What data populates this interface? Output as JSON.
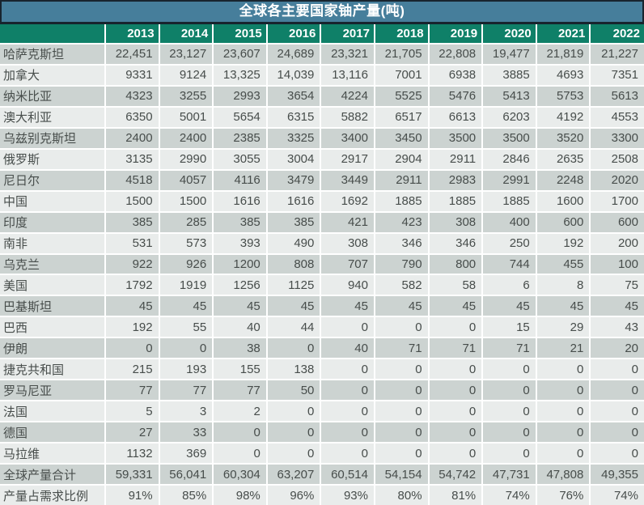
{
  "colors": {
    "title_bg": "#467e9b",
    "title_border": "#18242e",
    "header_bg": "#0f8068",
    "row_dark": "#ccd3d1",
    "row_light": "#e9eceb",
    "data_text": "#474d4b",
    "header_text": "#ffffff"
  },
  "chart_data": {
    "type": "table",
    "title": "全球各主要国家铀产量(吨)",
    "columns": [
      "2013",
      "2014",
      "2015",
      "2016",
      "2017",
      "2018",
      "2019",
      "2020",
      "2021",
      "2022"
    ],
    "rows": [
      {
        "label": "哈萨克斯坦",
        "values": [
          "22,451",
          "23,127",
          "23,607",
          "24,689",
          "23,321",
          "21,705",
          "22,808",
          "19,477",
          "21,819",
          "21,227"
        ]
      },
      {
        "label": "加拿大",
        "values": [
          "9331",
          "9124",
          "13,325",
          "14,039",
          "13,116",
          "7001",
          "6938",
          "3885",
          "4693",
          "7351"
        ]
      },
      {
        "label": "纳米比亚",
        "values": [
          "4323",
          "3255",
          "2993",
          "3654",
          "4224",
          "5525",
          "5476",
          "5413",
          "5753",
          "5613"
        ]
      },
      {
        "label": "澳大利亚",
        "values": [
          "6350",
          "5001",
          "5654",
          "6315",
          "5882",
          "6517",
          "6613",
          "6203",
          "4192",
          "4553"
        ]
      },
      {
        "label": "乌兹别克斯坦",
        "values": [
          "2400",
          "2400",
          "2385",
          "3325",
          "3400",
          "3450",
          "3500",
          "3500",
          "3520",
          "3300"
        ]
      },
      {
        "label": "俄罗斯",
        "values": [
          "3135",
          "2990",
          "3055",
          "3004",
          "2917",
          "2904",
          "2911",
          "2846",
          "2635",
          "2508"
        ]
      },
      {
        "label": "尼日尔",
        "values": [
          "4518",
          "4057",
          "4116",
          "3479",
          "3449",
          "2911",
          "2983",
          "2991",
          "2248",
          "2020"
        ]
      },
      {
        "label": "中国",
        "values": [
          "1500",
          "1500",
          "1616",
          "1616",
          "1692",
          "1885",
          "1885",
          "1885",
          "1600",
          "1700"
        ]
      },
      {
        "label": "印度",
        "values": [
          "385",
          "285",
          "385",
          "385",
          "421",
          "423",
          "308",
          "400",
          "600",
          "600"
        ]
      },
      {
        "label": "南非",
        "values": [
          "531",
          "573",
          "393",
          "490",
          "308",
          "346",
          "346",
          "250",
          "192",
          "200"
        ]
      },
      {
        "label": "乌克兰",
        "values": [
          "922",
          "926",
          "1200",
          "808",
          "707",
          "790",
          "800",
          "744",
          "455",
          "100"
        ]
      },
      {
        "label": "美国",
        "values": [
          "1792",
          "1919",
          "1256",
          "1125",
          "940",
          "582",
          "58",
          "6",
          "8",
          "75"
        ]
      },
      {
        "label": "巴基斯坦",
        "values": [
          "45",
          "45",
          "45",
          "45",
          "45",
          "45",
          "45",
          "45",
          "45",
          "45"
        ]
      },
      {
        "label": "巴西",
        "values": [
          "192",
          "55",
          "40",
          "44",
          "0",
          "0",
          "0",
          "15",
          "29",
          "43"
        ]
      },
      {
        "label": "伊朗",
        "values": [
          "0",
          "0",
          "38",
          "0",
          "40",
          "71",
          "71",
          "71",
          "21",
          "20"
        ]
      },
      {
        "label": "捷克共和国",
        "values": [
          "215",
          "193",
          "155",
          "138",
          "0",
          "0",
          "0",
          "0",
          "0",
          "0"
        ]
      },
      {
        "label": "罗马尼亚",
        "values": [
          "77",
          "77",
          "77",
          "50",
          "0",
          "0",
          "0",
          "0",
          "0",
          "0"
        ]
      },
      {
        "label": "法国",
        "values": [
          "5",
          "3",
          "2",
          "0",
          "0",
          "0",
          "0",
          "0",
          "0",
          "0"
        ]
      },
      {
        "label": "德国",
        "values": [
          "27",
          "33",
          "0",
          "0",
          "0",
          "0",
          "0",
          "0",
          "0",
          "0"
        ]
      },
      {
        "label": "马拉维",
        "values": [
          "1132",
          "369",
          "0",
          "0",
          "0",
          "0",
          "0",
          "0",
          "0",
          "0"
        ]
      },
      {
        "label": "全球产量合计",
        "values": [
          "59,331",
          "56,041",
          "60,304",
          "63,207",
          "60,514",
          "54,154",
          "54,742",
          "47,731",
          "47,808",
          "49,355"
        ]
      },
      {
        "label": "产量占需求比例",
        "values": [
          "91%",
          "85%",
          "98%",
          "96%",
          "93%",
          "80%",
          "81%",
          "74%",
          "76%",
          "74%"
        ]
      }
    ]
  }
}
